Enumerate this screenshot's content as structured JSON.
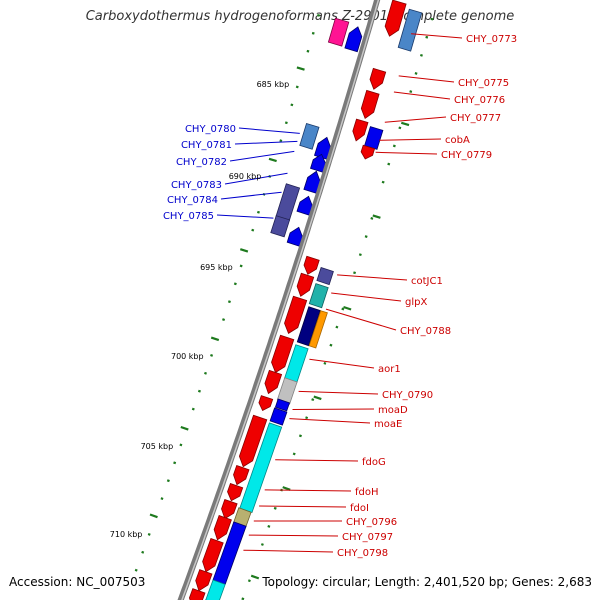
{
  "title": "Carboxydothermus hydrogenoformans Z-2901, complete genome",
  "footer": {
    "accession": "Accession: NC_007503",
    "summary": "Topology: circular; Length: 2,401,520 bp; Genes: 2,683"
  },
  "colors": {
    "forward_label": "#cc0000",
    "reverse_label": "#0000cc",
    "backbone": "#7a7a7a",
    "tick": "#1e7a1e"
  },
  "kbp_labels": [
    "685 kbp",
    "690 kbp",
    "695 kbp",
    "700 kbp",
    "705 kbp",
    "710 kbp"
  ],
  "reverse_labels": [
    "CHY_0780",
    "CHY_0781",
    "CHY_0782",
    "CHY_0783",
    "CHY_0784",
    "CHY_0785"
  ],
  "forward_labels": [
    "CHY_0773",
    "CHY_0775",
    "CHY_0776",
    "CHY_0777",
    "cobA",
    "CHY_0779",
    "cotJC1",
    "glpX",
    "CHY_0788",
    "aor1",
    "CHY_0790",
    "moaD",
    "moaE",
    "fdoG",
    "fdoH",
    "fdoI",
    "CHY_0796",
    "CHY_0797",
    "CHY_0798"
  ]
}
